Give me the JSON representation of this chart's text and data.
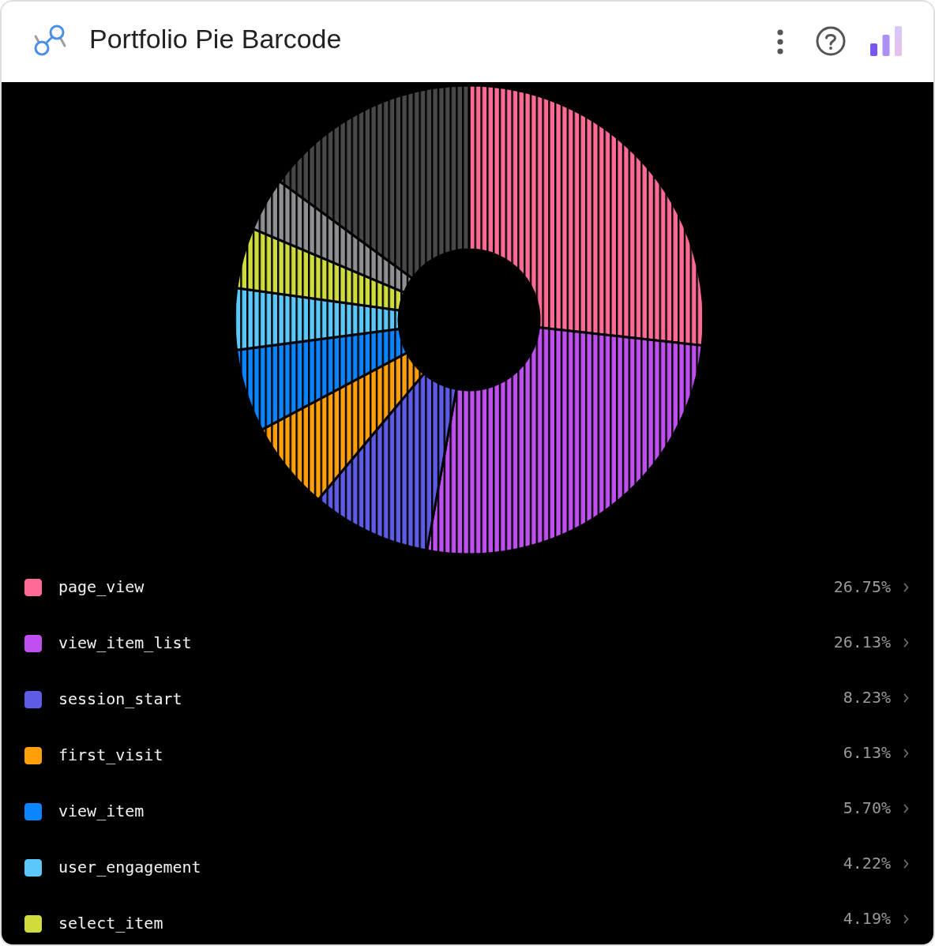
{
  "chart_data": {
    "type": "donut",
    "title": "Portfolio Pie Barcode",
    "categories": [
      "page_view",
      "view_item_list",
      "session_start",
      "first_visit",
      "view_item",
      "user_engagement",
      "select_item",
      null,
      null
    ],
    "values": [
      26.75,
      26.13,
      8.23,
      6.13,
      5.7,
      4.22,
      4.19,
      3.7,
      14.95
    ],
    "value_labels": [
      "26.75%",
      "26.13%",
      "8.23%",
      "6.13%",
      "5.70%",
      "4.22%",
      "4.19%",
      null,
      null
    ],
    "colors": [
      "#ff6b96",
      "#bf4ff0",
      "#5e5ce6",
      "#ff9f0a",
      "#0a84ff",
      "#5ac8fa",
      "#cfdc3c",
      "#8e8e93",
      "#48484a"
    ],
    "legend": "bottom"
  }
}
